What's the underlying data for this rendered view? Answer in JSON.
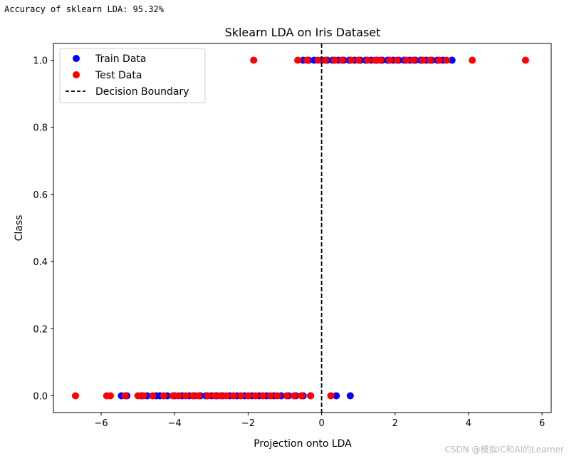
{
  "console_output": "Accuracy of sklearn LDA: 95.32%",
  "watermark": "CSDN @模拟IC和AI的Learner",
  "colors": {
    "train": "#0000ff",
    "test": "#ff0000",
    "boundary": "#000000"
  },
  "chart_data": {
    "type": "scatter",
    "title": "Sklearn LDA on Iris Dataset",
    "xlabel": "Projection onto LDA",
    "ylabel": "Class",
    "xlim": [
      -7.3,
      6.25
    ],
    "ylim": [
      -0.05,
      1.05
    ],
    "xticks": [
      -6,
      -4,
      -2,
      0,
      2,
      4,
      6
    ],
    "xtick_labels": [
      "−6",
      "−4",
      "−2",
      "0",
      "2",
      "4",
      "6"
    ],
    "yticks": [
      0.0,
      0.2,
      0.4,
      0.6,
      0.8,
      1.0
    ],
    "ytick_labels": [
      "0.0",
      "0.2",
      "0.4",
      "0.6",
      "0.8",
      "1.0"
    ],
    "legend_position": "top-left",
    "decision_boundary": {
      "label": "Decision Boundary",
      "x": 0.0,
      "style": "dashed"
    },
    "series": [
      {
        "name": "Train Data",
        "color": "#0000ff",
        "points": [
          {
            "x": -5.45,
            "y": 0
          },
          {
            "x": -5.3,
            "y": 0
          },
          {
            "x": -4.9,
            "y": 0
          },
          {
            "x": -4.75,
            "y": 0
          },
          {
            "x": -4.5,
            "y": 0
          },
          {
            "x": -4.4,
            "y": 0
          },
          {
            "x": -4.2,
            "y": 0
          },
          {
            "x": -4.0,
            "y": 0
          },
          {
            "x": -3.8,
            "y": 0
          },
          {
            "x": -3.6,
            "y": 0
          },
          {
            "x": -3.45,
            "y": 0
          },
          {
            "x": -3.3,
            "y": 0
          },
          {
            "x": -3.15,
            "y": 0
          },
          {
            "x": -3.0,
            "y": 0
          },
          {
            "x": -2.85,
            "y": 0
          },
          {
            "x": -2.7,
            "y": 0
          },
          {
            "x": -2.5,
            "y": 0
          },
          {
            "x": -2.3,
            "y": 0
          },
          {
            "x": -2.1,
            "y": 0
          },
          {
            "x": -1.9,
            "y": 0
          },
          {
            "x": -1.7,
            "y": 0
          },
          {
            "x": -1.5,
            "y": 0
          },
          {
            "x": -1.3,
            "y": 0
          },
          {
            "x": -1.1,
            "y": 0
          },
          {
            "x": -0.9,
            "y": 0
          },
          {
            "x": -0.7,
            "y": 0
          },
          {
            "x": -0.5,
            "y": 0
          },
          {
            "x": -0.3,
            "y": 0
          },
          {
            "x": 0.4,
            "y": 0
          },
          {
            "x": 0.78,
            "y": 0
          },
          {
            "x": -0.5,
            "y": 1
          },
          {
            "x": -0.35,
            "y": 1
          },
          {
            "x": -0.2,
            "y": 1
          },
          {
            "x": 0.0,
            "y": 1
          },
          {
            "x": 0.15,
            "y": 1
          },
          {
            "x": 0.3,
            "y": 1
          },
          {
            "x": 0.45,
            "y": 1
          },
          {
            "x": 0.6,
            "y": 1
          },
          {
            "x": 0.75,
            "y": 1
          },
          {
            "x": 0.9,
            "y": 1
          },
          {
            "x": 1.05,
            "y": 1
          },
          {
            "x": 1.2,
            "y": 1
          },
          {
            "x": 1.35,
            "y": 1
          },
          {
            "x": 1.5,
            "y": 1
          },
          {
            "x": 1.65,
            "y": 1
          },
          {
            "x": 1.8,
            "y": 1
          },
          {
            "x": 1.95,
            "y": 1
          },
          {
            "x": 2.1,
            "y": 1
          },
          {
            "x": 2.25,
            "y": 1
          },
          {
            "x": 2.4,
            "y": 1
          },
          {
            "x": 2.55,
            "y": 1
          },
          {
            "x": 2.7,
            "y": 1
          },
          {
            "x": 2.85,
            "y": 1
          },
          {
            "x": 3.0,
            "y": 1
          },
          {
            "x": 3.15,
            "y": 1
          },
          {
            "x": 3.3,
            "y": 1
          },
          {
            "x": 3.55,
            "y": 1
          }
        ]
      },
      {
        "name": "Test Data",
        "color": "#ff0000",
        "points": [
          {
            "x": -6.7,
            "y": 0
          },
          {
            "x": -5.85,
            "y": 0
          },
          {
            "x": -5.75,
            "y": 0
          },
          {
            "x": -5.35,
            "y": 0
          },
          {
            "x": -5.0,
            "y": 0
          },
          {
            "x": -4.85,
            "y": 0
          },
          {
            "x": -4.6,
            "y": 0
          },
          {
            "x": -4.3,
            "y": 0
          },
          {
            "x": -4.05,
            "y": 0
          },
          {
            "x": -3.9,
            "y": 0
          },
          {
            "x": -3.7,
            "y": 0
          },
          {
            "x": -3.5,
            "y": 0
          },
          {
            "x": -3.35,
            "y": 0
          },
          {
            "x": -3.1,
            "y": 0
          },
          {
            "x": -2.9,
            "y": 0
          },
          {
            "x": -2.75,
            "y": 0
          },
          {
            "x": -2.6,
            "y": 0
          },
          {
            "x": -2.4,
            "y": 0
          },
          {
            "x": -2.2,
            "y": 0
          },
          {
            "x": -2.0,
            "y": 0
          },
          {
            "x": -1.8,
            "y": 0
          },
          {
            "x": -1.6,
            "y": 0
          },
          {
            "x": -1.4,
            "y": 0
          },
          {
            "x": -1.2,
            "y": 0
          },
          {
            "x": -0.95,
            "y": 0
          },
          {
            "x": -0.75,
            "y": 0
          },
          {
            "x": -0.55,
            "y": 0
          },
          {
            "x": -0.3,
            "y": 0
          },
          {
            "x": 0.25,
            "y": 0
          },
          {
            "x": -1.85,
            "y": 1
          },
          {
            "x": -0.65,
            "y": 1
          },
          {
            "x": -0.4,
            "y": 1
          },
          {
            "x": -0.1,
            "y": 1
          },
          {
            "x": 0.1,
            "y": 1
          },
          {
            "x": 0.35,
            "y": 1
          },
          {
            "x": 0.55,
            "y": 1
          },
          {
            "x": 0.8,
            "y": 1
          },
          {
            "x": 1.0,
            "y": 1
          },
          {
            "x": 1.25,
            "y": 1
          },
          {
            "x": 1.45,
            "y": 1
          },
          {
            "x": 1.6,
            "y": 1
          },
          {
            "x": 1.85,
            "y": 1
          },
          {
            "x": 2.05,
            "y": 1
          },
          {
            "x": 2.3,
            "y": 1
          },
          {
            "x": 2.5,
            "y": 1
          },
          {
            "x": 2.75,
            "y": 1
          },
          {
            "x": 2.95,
            "y": 1
          },
          {
            "x": 3.2,
            "y": 1
          },
          {
            "x": 3.4,
            "y": 1
          },
          {
            "x": 4.1,
            "y": 1
          },
          {
            "x": 5.55,
            "y": 1
          }
        ]
      }
    ]
  }
}
